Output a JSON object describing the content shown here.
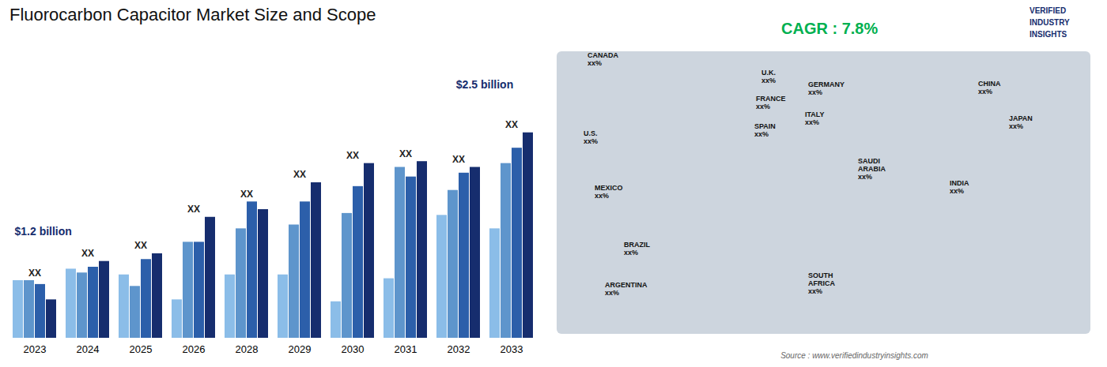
{
  "chart_data": {
    "type": "bar",
    "title": "Fluorocarbon Capacitor Market Size and Scope",
    "categories": [
      "2023",
      "2024",
      "2025",
      "2026",
      "2028",
      "2029",
      "2030",
      "2031",
      "2032",
      "2033"
    ],
    "series": [
      {
        "color": "#8bbde8",
        "values": [
          0.3,
          0.36,
          0.33,
          0.2,
          0.33,
          0.33,
          0.19,
          0.31,
          0.64,
          0.57
        ]
      },
      {
        "color": "#5e95cc",
        "values": [
          0.3,
          0.34,
          0.27,
          0.5,
          0.57,
          0.59,
          0.65,
          0.89,
          0.77,
          0.91
        ]
      },
      {
        "color": "#2c5faa",
        "values": [
          0.28,
          0.37,
          0.41,
          0.5,
          0.71,
          0.71,
          0.79,
          0.84,
          0.86,
          0.99
        ]
      },
      {
        "color": "#162d6e",
        "values": [
          0.2,
          0.4,
          0.44,
          0.63,
          0.67,
          0.81,
          0.91,
          0.92,
          0.89,
          1.07
        ]
      }
    ],
    "ylim": [
      0,
      1.48
    ],
    "tick_labels": "x",
    "grid": false,
    "annotations": [
      {
        "text": "XX",
        "color": "#222222"
      },
      {
        "text": "$1.2 billion",
        "color": "#162d6e"
      },
      {
        "text": "$2.5 billion",
        "color": "#162d6e"
      },
      {
        "text": "CAGR : 7.8%",
        "color": "#00b050"
      },
      {
        "text": "Source : www.verifiedindustryinsights.com",
        "color": "#666666"
      },
      {
        "text": "VERIFIED\nINDUSTRY\nINSIGHTS",
        "color": "#162d6e"
      },
      {
        "text": "CANADA\nxx%"
      },
      {
        "text": "U.S.\nxx%"
      },
      {
        "text": "MEXICO\nxx%"
      },
      {
        "text": "BRAZIL\nxx%"
      },
      {
        "text": "ARGENTINA\nxx%"
      },
      {
        "text": "U.K.\nxx%"
      },
      {
        "text": "FRANCE\nxx%"
      },
      {
        "text": "SPAIN\nxx%"
      },
      {
        "text": "GERMANY\nxx%"
      },
      {
        "text": "ITALY\nxx%"
      },
      {
        "text": "SAUDI\nARABIA\nxx%"
      },
      {
        "text": "SOUTH\nAFRICA\nxx%"
      },
      {
        "text": "CHINA\nxx%"
      },
      {
        "text": "INDIA\nxx%"
      },
      {
        "text": "JAPAN\nxx%"
      }
    ]
  }
}
